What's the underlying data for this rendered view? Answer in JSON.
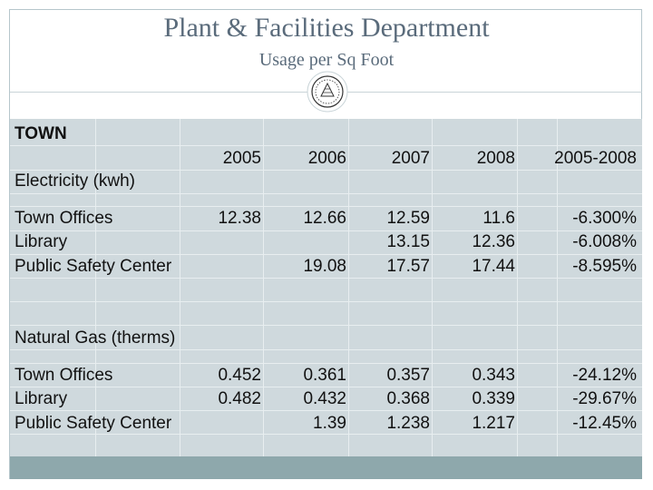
{
  "title": "Plant & Facilities Department",
  "subtitle": "Usage per Sq Foot",
  "seal": {
    "name": "town-seal-icon"
  },
  "colors": {
    "title": "#5a6b7b",
    "table_bg": "#cfd9dd",
    "band": "#8ea8ac"
  },
  "table": {
    "section": "TOWN",
    "years": [
      "2005",
      "2006",
      "2007",
      "2008",
      "2005-2008"
    ],
    "electricity": {
      "heading": "Electricity (kwh)",
      "rows": [
        {
          "label": "Town Offices",
          "values": [
            "12.38",
            "12.66",
            "12.59",
            "11.6",
            "-6.300%"
          ]
        },
        {
          "label": "Library",
          "values": [
            "",
            "",
            "13.15",
            "12.36",
            "-6.008%"
          ]
        },
        {
          "label": "Public Safety Center",
          "values": [
            "",
            "19.08",
            "17.57",
            "17.44",
            "-8.595%"
          ]
        }
      ]
    },
    "gas": {
      "heading": "Natural Gas (therms)",
      "rows": [
        {
          "label": "Town Offices",
          "values": [
            "0.452",
            "0.361",
            "0.357",
            "0.343",
            "-24.12%"
          ]
        },
        {
          "label": "Library",
          "values": [
            "0.482",
            "0.432",
            "0.368",
            "0.339",
            "-29.67%"
          ]
        },
        {
          "label": "Public Safety Center",
          "values": [
            "",
            "1.39",
            "1.238",
            "1.217",
            "-12.45%"
          ]
        }
      ]
    }
  }
}
